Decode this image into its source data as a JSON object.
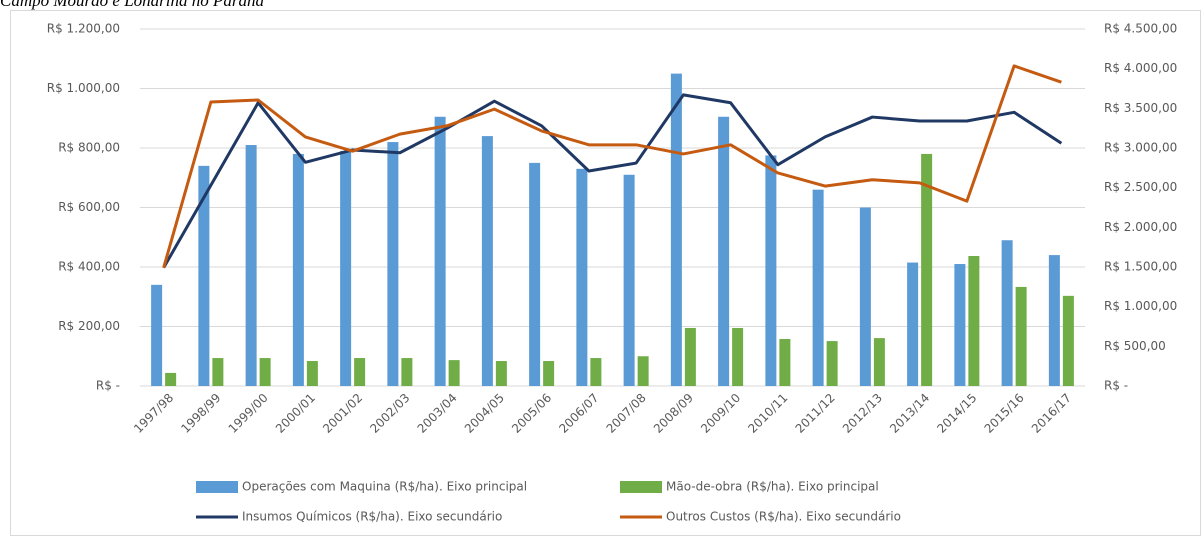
{
  "chart_data": {
    "type": "bar_line",
    "title": "Campo Mourão e Londrina no Paraná",
    "categories": [
      "1997/98",
      "1998/99",
      "1999/00",
      "2000/01",
      "2001/02",
      "2002/03",
      "2003/04",
      "2004/05",
      "2005/06",
      "2006/07",
      "2007/08",
      "2008/09",
      "2009/10",
      "2010/11",
      "2011/12",
      "2012/13",
      "2013/14",
      "2014/15",
      "2015/16",
      "2016/17"
    ],
    "series": [
      {
        "name": "Operações com Maquina (R$/ha). Eixo principal",
        "color": "#5b9bd5",
        "kind": "bar",
        "axis": "y",
        "values": [
          340,
          740,
          810,
          780,
          790,
          820,
          905,
          840,
          750,
          730,
          710,
          1050,
          905,
          775,
          660,
          600,
          415,
          410,
          490,
          440
        ]
      },
      {
        "name": "Mão-de-obra (R$/ha). Eixo principal",
        "color": "#70ad47",
        "kind": "bar",
        "axis": "y",
        "values": [
          44,
          94,
          94,
          84,
          94,
          94,
          87,
          84,
          84,
          94,
          100,
          195,
          195,
          158,
          151,
          161,
          780,
          437,
          333,
          303
        ]
      },
      {
        "name": "Insumos Químicos (R$/ha). Eixo secundário",
        "color": "#203864",
        "kind": "line",
        "axis": "y2",
        "values": [
          1490,
          2530,
          3570,
          2820,
          2975,
          2940,
          3250,
          3590,
          3280,
          2710,
          2810,
          3670,
          3570,
          2790,
          3140,
          3390,
          3340,
          3340,
          3450,
          3060
        ]
      },
      {
        "name": "Outros Custos (R$/ha). Eixo secundário",
        "color": "#c55a11",
        "kind": "line",
        "axis": "y2",
        "values": [
          1490,
          3580,
          3605,
          3140,
          2960,
          3175,
          3280,
          3490,
          3215,
          3040,
          3040,
          2925,
          3040,
          2685,
          2520,
          2600,
          2560,
          2330,
          4035,
          3830
        ]
      }
    ],
    "ylim": [
      0,
      1200
    ],
    "yticks": [
      {
        "value": 0,
        "label": "R$ -"
      },
      {
        "value": 200,
        "label": "R$ 200,00"
      },
      {
        "value": 400,
        "label": "R$ 400,00"
      },
      {
        "value": 600,
        "label": "R$ 600,00"
      },
      {
        "value": 800,
        "label": "R$ 800,00"
      },
      {
        "value": 1000,
        "label": "R$ 1.000,00"
      },
      {
        "value": 1200,
        "label": "R$ 1.200,00"
      }
    ],
    "y2lim": [
      0,
      4500
    ],
    "y2ticks": [
      {
        "value": 0,
        "label": "R$ -"
      },
      {
        "value": 500,
        "label": "R$ 500,00"
      },
      {
        "value": 1000,
        "label": "R$ 1.000,00"
      },
      {
        "value": 1500,
        "label": "R$ 1.500,00"
      },
      {
        "value": 2000,
        "label": "R$ 2.000,00"
      },
      {
        "value": 2500,
        "label": "R$ 2.500,00"
      },
      {
        "value": 3000,
        "label": "R$ 3.000,00"
      },
      {
        "value": 3500,
        "label": "R$ 3.500,00"
      },
      {
        "value": 4000,
        "label": "R$ 4.000,00"
      },
      {
        "value": 4500,
        "label": "R$ 4.500,00"
      }
    ],
    "grid": true
  }
}
